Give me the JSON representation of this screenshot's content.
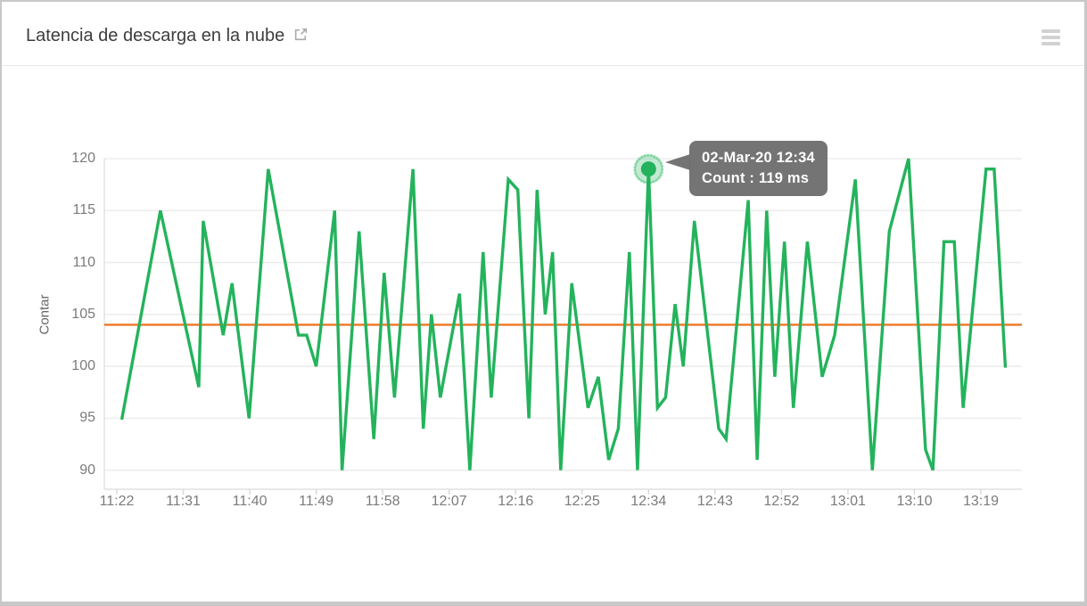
{
  "header": {
    "title": "Latencia de descarga en la nube"
  },
  "colors": {
    "green": "#24b35c",
    "halo": "rgba(36,179,92,0.28)",
    "halo_rim": "rgba(36,179,92,0.45)",
    "orange": "#ee7623",
    "grid": "#ededed",
    "axis": "#e0e0e0",
    "tick_stub": "#d8d8d8",
    "tick_text": "#7b7b7b",
    "tooltip_bg": "#6e6e6e"
  },
  "chart_data": {
    "type": "line",
    "title": "Latencia de descarga en la nube",
    "xlabel": "",
    "ylabel": "Contar",
    "unit": "ms",
    "ylim": [
      88,
      122
    ],
    "y_ticks": [
      120,
      115,
      110,
      105,
      100,
      95,
      90
    ],
    "x_ticks": [
      "11:22",
      "11:31",
      "11:40",
      "11:49",
      "11:58",
      "12:07",
      "12:16",
      "12:25",
      "12:34",
      "12:43",
      "12:52",
      "13:01",
      "13:10",
      "13:19"
    ],
    "x_tick_interval_min": 9,
    "x_start_label": "11:22",
    "grid": "horizontal-only",
    "threshold": {
      "value": 104,
      "color": "#ee7623"
    },
    "series": [
      {
        "name": "Count",
        "color": "#24b35c",
        "points_format": "[minutes_after_11:22, value_ms]",
        "points": [
          [
            0.7,
            95
          ],
          [
            5.9,
            115
          ],
          [
            11.1,
            98
          ],
          [
            11.7,
            114
          ],
          [
            14.4,
            103
          ],
          [
            15.6,
            108
          ],
          [
            17.9,
            95
          ],
          [
            20.5,
            119
          ],
          [
            24.6,
            103
          ],
          [
            25.7,
            103
          ],
          [
            27.0,
            100
          ],
          [
            29.5,
            115
          ],
          [
            30.5,
            90
          ],
          [
            32.8,
            113
          ],
          [
            34.8,
            93
          ],
          [
            36.2,
            109
          ],
          [
            37.6,
            97
          ],
          [
            40.1,
            119
          ],
          [
            41.5,
            94
          ],
          [
            42.6,
            105
          ],
          [
            43.8,
            97
          ],
          [
            46.4,
            107
          ],
          [
            47.8,
            90
          ],
          [
            49.6,
            111
          ],
          [
            50.7,
            97
          ],
          [
            53.0,
            118
          ],
          [
            54.3,
            117
          ],
          [
            55.8,
            95
          ],
          [
            56.9,
            117
          ],
          [
            58.0,
            105
          ],
          [
            59.0,
            111
          ],
          [
            60.1,
            90
          ],
          [
            61.6,
            108
          ],
          [
            63.8,
            96
          ],
          [
            65.2,
            99
          ],
          [
            66.6,
            91
          ],
          [
            67.9,
            94
          ],
          [
            69.4,
            111
          ],
          [
            70.5,
            90
          ],
          [
            72.0,
            119
          ],
          [
            73.2,
            96
          ],
          [
            74.3,
            97
          ],
          [
            75.6,
            106
          ],
          [
            76.7,
            100
          ],
          [
            78.2,
            114
          ],
          [
            81.5,
            94
          ],
          [
            82.5,
            93
          ],
          [
            85.5,
            116
          ],
          [
            86.7,
            91
          ],
          [
            88.0,
            115
          ],
          [
            89.1,
            99
          ],
          [
            90.4,
            112
          ],
          [
            91.6,
            96
          ],
          [
            93.5,
            112
          ],
          [
            95.5,
            99
          ],
          [
            97.2,
            103
          ],
          [
            100.0,
            118
          ],
          [
            102.3,
            90
          ],
          [
            104.6,
            113
          ],
          [
            107.2,
            120
          ],
          [
            109.5,
            92
          ],
          [
            110.5,
            90
          ],
          [
            112.0,
            112
          ],
          [
            113.4,
            112
          ],
          [
            114.6,
            96
          ],
          [
            117.7,
            119
          ],
          [
            118.8,
            119
          ],
          [
            120.3,
            100
          ]
        ]
      }
    ],
    "highlight": {
      "t": 72.0,
      "value": 119,
      "time_label": "12:34"
    },
    "tooltip": {
      "line1": "02-Mar-20 12:34",
      "line2": "Count : 119 ms"
    }
  }
}
